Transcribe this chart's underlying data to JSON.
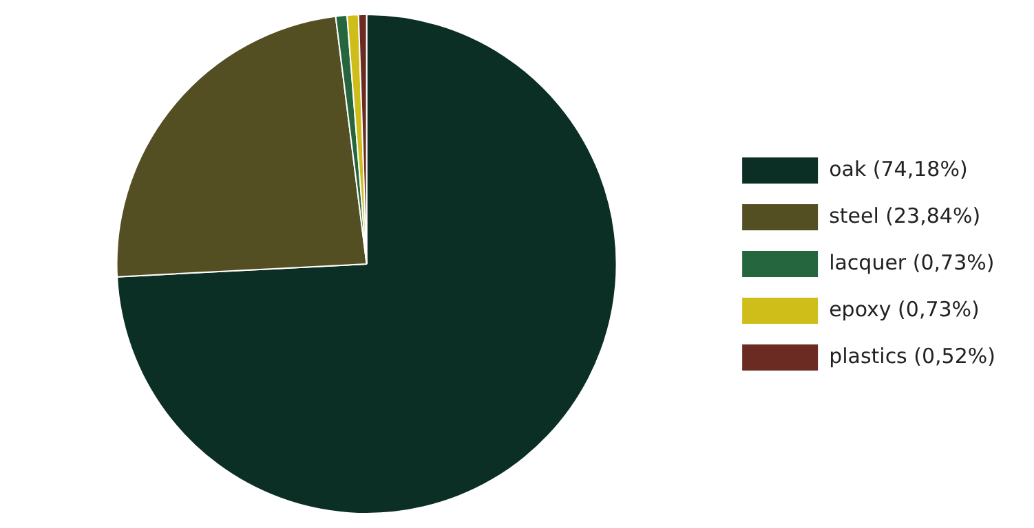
{
  "chart_data": {
    "type": "pie",
    "categories": [
      "oak (74,18%)",
      "steel (23,84%)",
      "lacquer (0,73%)",
      "epoxy (0,73%)",
      "plastics (0,52%)"
    ],
    "values": [
      74.18,
      23.84,
      0.73,
      0.73,
      0.52
    ],
    "colors": [
      "#0b2e25",
      "#544f22",
      "#26663f",
      "#cfbe1a",
      "#6b2b22"
    ],
    "legend": "right"
  }
}
